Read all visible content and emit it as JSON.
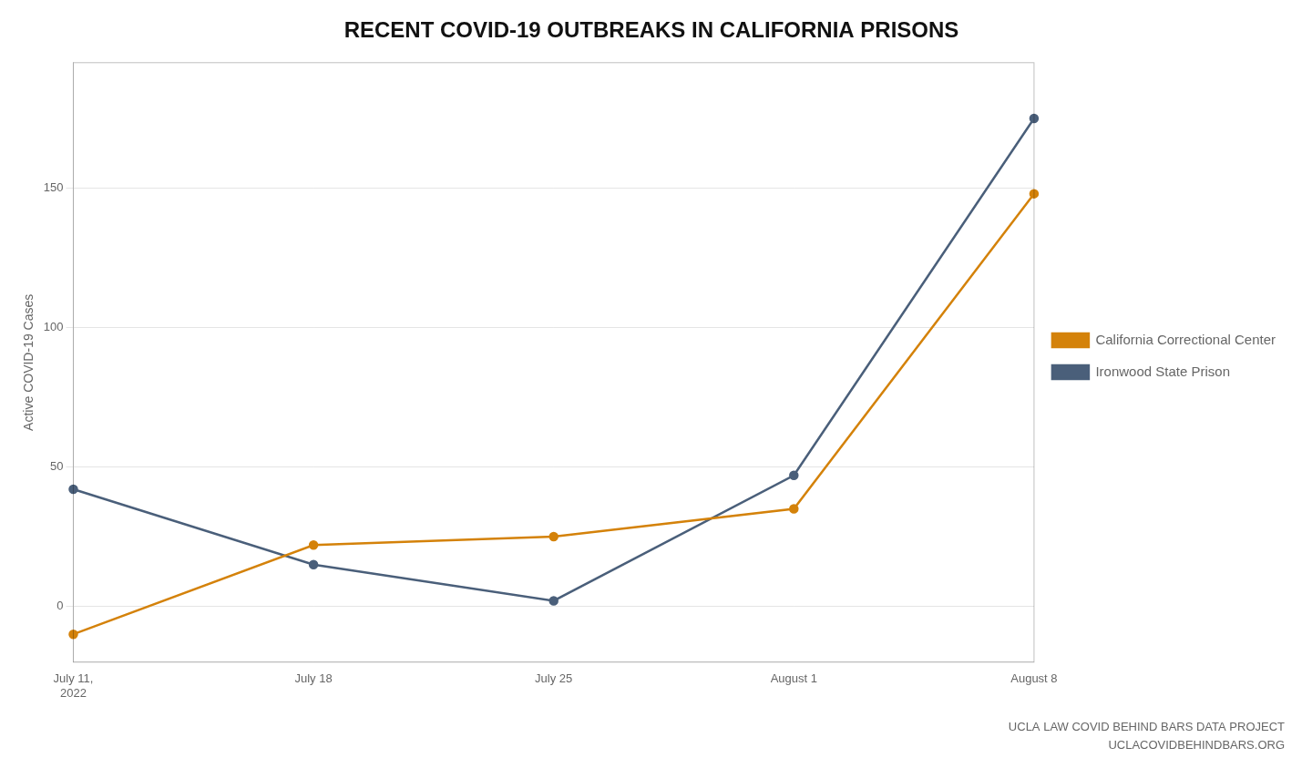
{
  "chart_data": {
    "type": "line",
    "title": "RECENT COVID-19 OUTBREAKS IN CALIFORNIA PRISONS",
    "categories": [
      "July 11,\n2022",
      "July 18",
      "July 25",
      "August 1",
      "August 8"
    ],
    "series": [
      {
        "name": "California Correctional\nCenter",
        "color": "#D4820A",
        "values": [
          -10,
          22,
          25,
          35,
          148
        ],
        "marker": "circle"
      },
      {
        "name": "Ironwood State Prison",
        "color": "#4A5F7A",
        "values": [
          42,
          15,
          2,
          47,
          175
        ],
        "marker": "circle"
      }
    ],
    "y_label": "Active COVID-19 Cases",
    "ylim": [
      -20,
      195
    ],
    "yticks": [
      0,
      50,
      100,
      150
    ],
    "grid": true,
    "legend": "right",
    "annotations": [
      "UCLA LAW COVID BEHIND BARS DATA PROJECT",
      "UCLACOVIDBEHINDBARS.ORG"
    ]
  }
}
